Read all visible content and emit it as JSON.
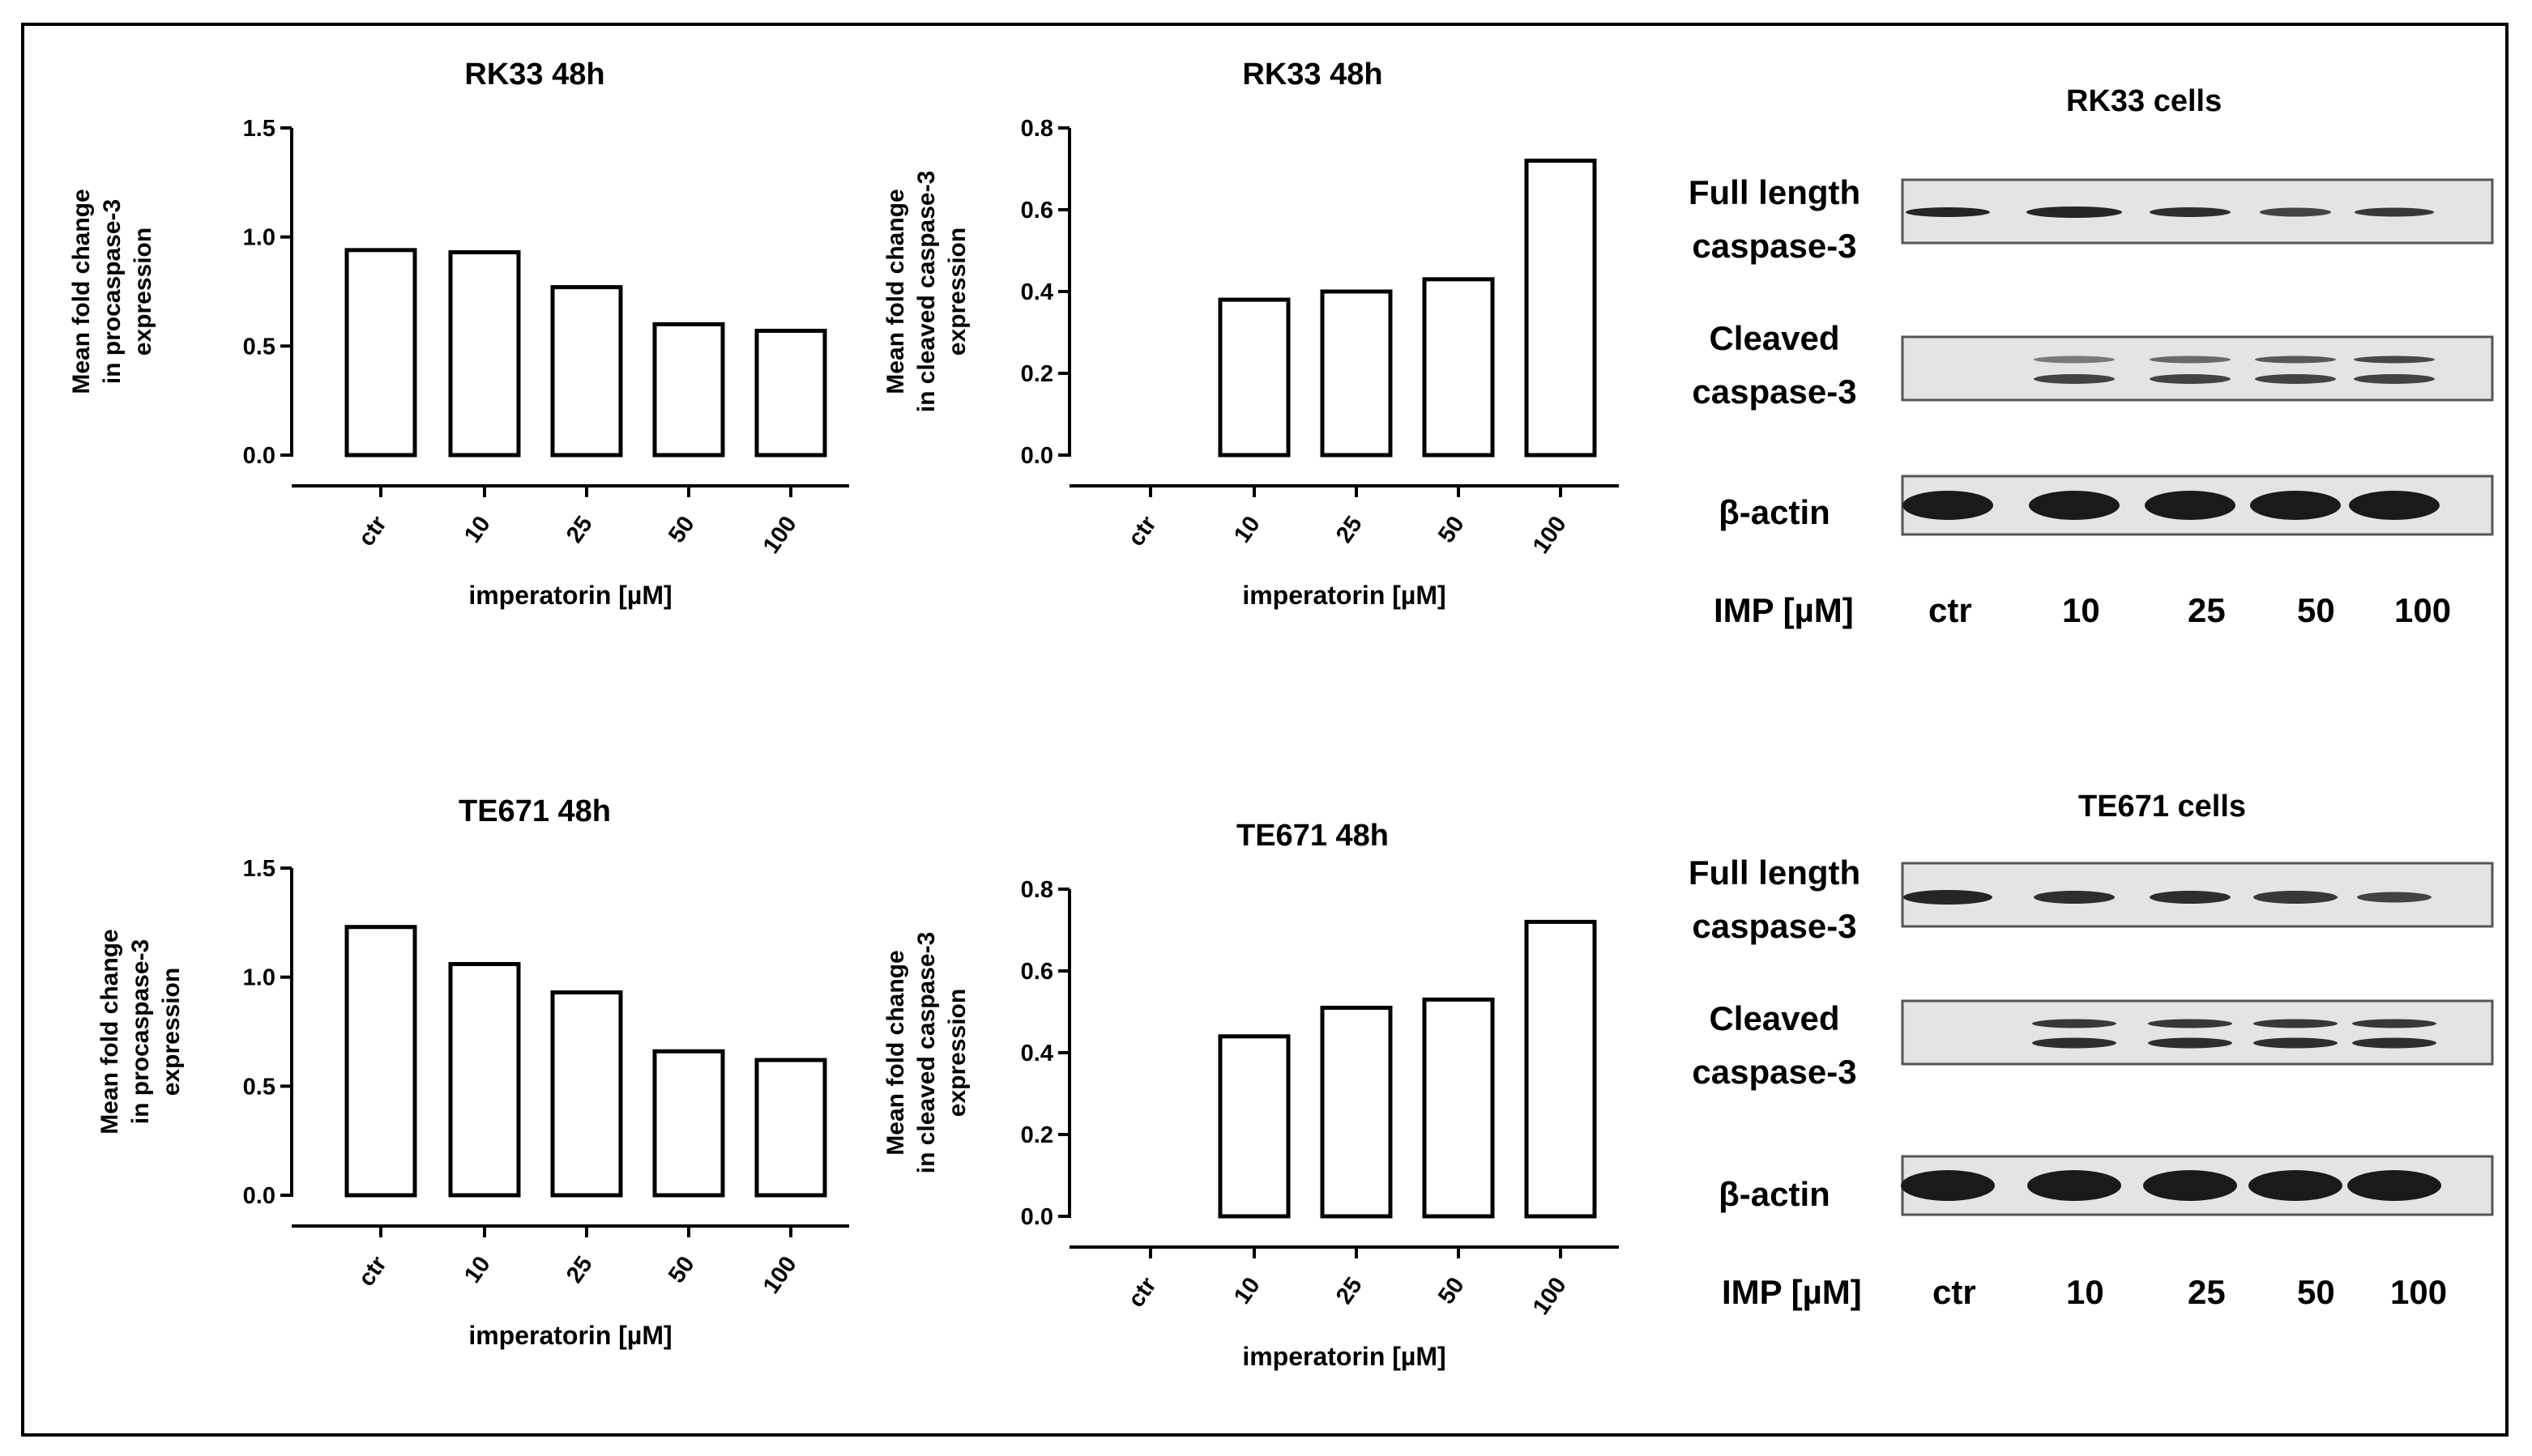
{
  "colors": {
    "axis": "#000000",
    "bar_fill": "#ffffff",
    "bar_stroke": "#000000",
    "blot_bg": "#e4e4e4",
    "band": "#1a1a1a"
  },
  "chart_data": [
    {
      "type": "bar",
      "title": "RK33 48h",
      "categories": [
        "ctr",
        "10",
        "25",
        "50",
        "100"
      ],
      "values": [
        0.94,
        0.93,
        0.77,
        0.6,
        0.57
      ],
      "ylabel_lines": [
        "Mean fold change",
        "in procaspase-3",
        "expression"
      ],
      "xlabel": "imperatorin [µM]",
      "ylim": [
        0,
        1.5
      ],
      "yticks": [
        "0.0",
        "0.5",
        "1.0",
        "1.5"
      ]
    },
    {
      "type": "bar",
      "title": "RK33 48h",
      "categories": [
        "ctr",
        "10",
        "25",
        "50",
        "100"
      ],
      "values": [
        0,
        0.38,
        0.4,
        0.43,
        0.72
      ],
      "ylabel_lines": [
        "Mean fold change",
        "in cleaved caspase-3",
        "expression"
      ],
      "xlabel": "imperatorin [µM]",
      "ylim": [
        0,
        0.8
      ],
      "yticks": [
        "0.0",
        "0.2",
        "0.4",
        "0.6",
        "0.8"
      ]
    },
    {
      "type": "bar",
      "title": "TE671 48h",
      "categories": [
        "ctr",
        "10",
        "25",
        "50",
        "100"
      ],
      "values": [
        1.23,
        1.06,
        0.93,
        0.66,
        0.62
      ],
      "ylabel_lines": [
        "Mean fold change",
        "in procaspase-3",
        "expression"
      ],
      "xlabel": "imperatorin [µM]",
      "ylim": [
        0,
        1.5
      ],
      "yticks": [
        "0.0",
        "0.5",
        "1.0",
        "1.5"
      ]
    },
    {
      "type": "bar",
      "title": "TE671 48h",
      "categories": [
        "ctr",
        "10",
        "25",
        "50",
        "100"
      ],
      "values": [
        0,
        0.44,
        0.51,
        0.53,
        0.72
      ],
      "ylabel_lines": [
        "Mean fold change",
        "in cleaved caspase-3",
        "expression"
      ],
      "xlabel": "imperatorin [µM]",
      "ylim": [
        0,
        0.8
      ],
      "yticks": [
        "0.0",
        "0.2",
        "0.4",
        "0.6",
        "0.8"
      ]
    }
  ],
  "blots": [
    {
      "title": "RK33 cells",
      "row_labels": [
        {
          "line1": "Full length",
          "line2": "caspase-3"
        },
        {
          "line1": "Cleaved",
          "line2": "caspase-3"
        },
        {
          "line1": "β-actin",
          "line2": ""
        }
      ],
      "lane_header": "IMP [µM]",
      "lanes": [
        "ctr",
        "10",
        "25",
        "50",
        "100"
      ]
    },
    {
      "title": "TE671 cells",
      "row_labels": [
        {
          "line1": "Full length",
          "line2": "caspase-3"
        },
        {
          "line1": "Cleaved",
          "line2": "caspase-3"
        },
        {
          "line1": "β-actin",
          "line2": ""
        }
      ],
      "lane_header": "IMP [µM]",
      "lanes": [
        "ctr",
        "10",
        "25",
        "50",
        "100"
      ]
    }
  ]
}
